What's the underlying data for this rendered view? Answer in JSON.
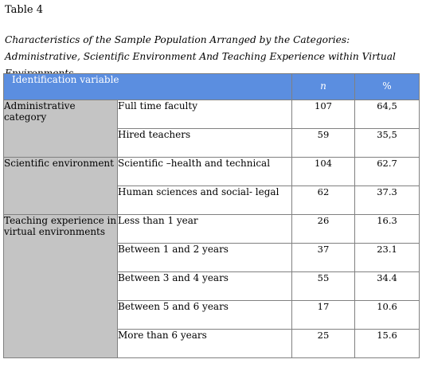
{
  "document": {
    "table_label": "Table 4",
    "caption": "Characteristics of the Sample Population Arranged by the Categories: Administrative, Scientific Environment And Teaching Experience within Virtual Environments"
  },
  "table": {
    "headers": {
      "identification": "Identification variable",
      "n": "n",
      "percent": "%"
    },
    "groups": [
      {
        "category": "Administrative category",
        "rows": [
          {
            "label": "Full time faculty",
            "n": "107",
            "pct": "64,5"
          },
          {
            "label": "Hired teachers",
            "n": "59",
            "pct": "35,5"
          }
        ]
      },
      {
        "category": "Scientific environment",
        "rows": [
          {
            "label": "Scientific –health and technical",
            "n": "104",
            "pct": "62.7"
          },
          {
            "label": "Human sciences and social- legal",
            "n": "62",
            "pct": "37.3"
          }
        ]
      },
      {
        "category": "Teaching experience in virtual environments",
        "rows": [
          {
            "label": "Less than 1 year",
            "n": "26",
            "pct": "16.3"
          },
          {
            "label": "Between 1 and 2 years",
            "n": "37",
            "pct": "23.1"
          },
          {
            "label": "Between 3 and 4 years",
            "n": "55",
            "pct": "34.4"
          },
          {
            "label": "Between 5 and 6 years",
            "n": "17",
            "pct": "10.6"
          },
          {
            "label": "More than 6 years",
            "n": "25",
            "pct": "15.6"
          }
        ]
      }
    ]
  }
}
